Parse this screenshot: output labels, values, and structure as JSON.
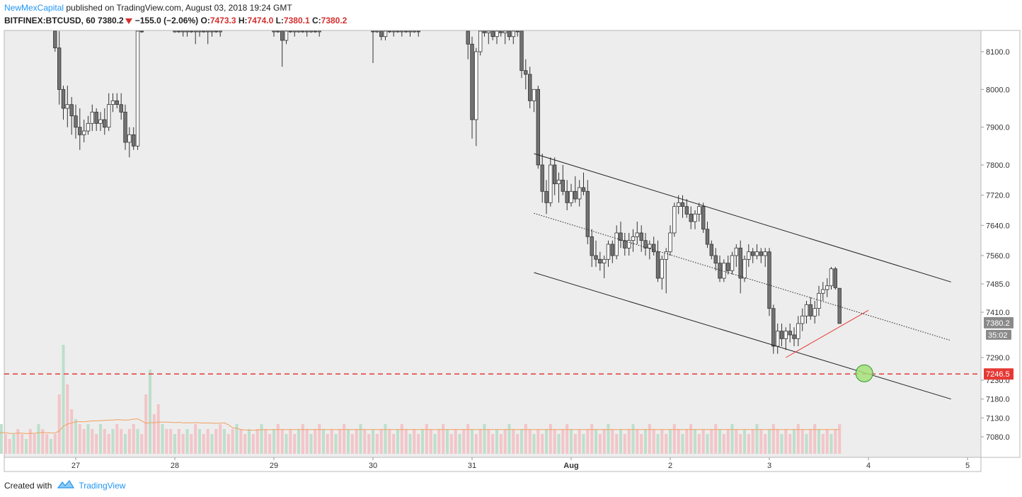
{
  "header": {
    "author": "NewMexCapital",
    "published_text": "published on TradingView.com, August 03, 2018 19:24 GMT",
    "symbol": "BITFINEX:BTCUSD, 60",
    "last": "7380.2",
    "change": "−155.0 (−2.06%)",
    "o_label": "O:",
    "o_value": "7473.3",
    "h_label": "H:",
    "h_value": "7474.0",
    "l_label": "L:",
    "l_value": "7380.1",
    "c_label": "C:",
    "c_value": "7380.2"
  },
  "footer": {
    "created_with": "Created with",
    "brand": "TradingView"
  },
  "colors": {
    "up": "#ffffff",
    "down": "#737373",
    "wick": "#333333",
    "vol_up": "#b7ddc8",
    "vol_down": "#f3c0c3",
    "vol_ma": "#f0a060",
    "channel": "#222222",
    "support": "#e53935",
    "target_fill": "#a5e07a",
    "bg": "#ededed"
  },
  "chart_data": {
    "type": "candlestick",
    "interval": "60",
    "x_ticks": [
      "27",
      "28",
      "29",
      "30",
      "31",
      "Aug",
      "2",
      "3",
      "4",
      "5"
    ],
    "y_ticks": [
      "7080.0",
      "7130.0",
      "7180.0",
      "7230.0",
      "7290.0",
      "7410.0",
      "7485.0",
      "7560.0",
      "7640.0",
      "7720.0",
      "7800.0",
      "7900.0",
      "8000.0",
      "8100.0"
    ],
    "ylim": [
      7040,
      8180
    ],
    "price_labels": {
      "last": "7380.2",
      "countdown": "35:02",
      "level": "7246.5"
    },
    "support_level": 7246.5,
    "overlays": {
      "channel_upper": [
        [
          "2018-07-31 15:00",
          7830
        ],
        [
          "2018-08-04 20:00",
          7490
        ]
      ],
      "channel_lower": [
        [
          "2018-07-31 15:00",
          7515
        ],
        [
          "2018-08-04 20:00",
          7180
        ]
      ],
      "channel_mid": [
        [
          "2018-07-31 15:00",
          7672
        ],
        [
          "2018-08-04 20:00",
          7335
        ]
      ],
      "support_line": [
        [
          "2018-08-03 04:00",
          7290
        ],
        [
          "2018-08-04 00:00",
          7415
        ]
      ],
      "target": [
        "2018-08-03 23:00",
        7248
      ]
    },
    "series_segments": [
      {
        "start": "2018-07-26 19:00",
        "ohlc": [
          [
            8160,
            8200,
            8100,
            8110
          ],
          [
            8110,
            8160,
            7960,
            8000
          ],
          [
            8000,
            8010,
            7920,
            7950
          ],
          [
            7950,
            8010,
            7900,
            7960
          ],
          [
            7960,
            7980,
            7880,
            7930
          ],
          [
            7930,
            7960,
            7870,
            7900
          ],
          [
            7900,
            7950,
            7840,
            7880
          ],
          [
            7880,
            7920,
            7860,
            7890
          ],
          [
            7890,
            7930,
            7880,
            7910
          ],
          [
            7910,
            7960,
            7890,
            7940
          ],
          [
            7940,
            7950,
            7890,
            7910
          ],
          [
            7910,
            7940,
            7890,
            7920
          ],
          [
            7920,
            7950,
            7880,
            7900
          ],
          [
            7900,
            7990,
            7890,
            7960
          ],
          [
            7960,
            7990,
            7940,
            7970
          ],
          [
            7970,
            7990,
            7950,
            7960
          ],
          [
            7960,
            7990,
            7920,
            7940
          ],
          [
            7940,
            7960,
            7840,
            7860
          ],
          [
            7860,
            7900,
            7820,
            7880
          ],
          [
            7880,
            7900,
            7840,
            7850
          ],
          [
            7850,
            8200,
            7840,
            8180
          ],
          [
            8180,
            8220,
            8150,
            8170
          ]
        ]
      },
      {
        "start": "2018-07-28 00:00",
        "ohlc": [
          [
            8170,
            8200,
            8150,
            8190
          ],
          [
            8190,
            8200,
            8150,
            8160
          ],
          [
            8160,
            8180,
            8140,
            8170
          ],
          [
            8170,
            8185,
            8140,
            8180
          ],
          [
            8180,
            8200,
            8150,
            8160
          ],
          [
            8160,
            8190,
            8120,
            8170
          ],
          [
            8170,
            8200,
            8140,
            8180
          ],
          [
            8180,
            8200,
            8150,
            8160
          ],
          [
            8160,
            8185,
            8120,
            8170
          ],
          [
            8170,
            8200,
            8140,
            8180
          ],
          [
            8180,
            8200,
            8150,
            8160
          ],
          [
            8160,
            8190,
            8140,
            8170
          ]
        ]
      },
      {
        "start": "2018-07-29 00:00",
        "ohlc": [
          [
            8170,
            8200,
            8140,
            8180
          ],
          [
            8180,
            8200,
            8150,
            8160
          ],
          [
            8160,
            8180,
            8060,
            8130
          ],
          [
            8130,
            8180,
            8120,
            8170
          ],
          [
            8170,
            8200,
            8150,
            8160
          ],
          [
            8160,
            8190,
            8140,
            8170
          ],
          [
            8170,
            8200,
            8150,
            8180
          ],
          [
            8180,
            8200,
            8150,
            8160
          ],
          [
            8160,
            8185,
            8140,
            8170
          ],
          [
            8170,
            8200,
            8150,
            8180
          ],
          [
            8180,
            8200,
            8150,
            8160
          ],
          [
            8160,
            8190,
            8140,
            8170
          ]
        ]
      },
      {
        "start": "2018-07-30 00:00",
        "ohlc": [
          [
            8170,
            8200,
            8070,
            8165
          ],
          [
            8165,
            8200,
            8150,
            8180
          ],
          [
            8180,
            8200,
            8130,
            8140
          ],
          [
            8140,
            8190,
            8130,
            8170
          ],
          [
            8170,
            8200,
            8150,
            8160
          ],
          [
            8160,
            8200,
            8140,
            8180
          ],
          [
            8180,
            8200,
            8150,
            8160
          ],
          [
            8160,
            8200,
            8140,
            8180
          ],
          [
            8180,
            8200,
            8150,
            8160
          ],
          [
            8160,
            8190,
            8140,
            8170
          ],
          [
            8170,
            8200,
            8150,
            8180
          ],
          [
            8180,
            8200,
            8140,
            8160
          ]
        ]
      },
      {
        "start": "2018-07-30 23:00",
        "ohlc": [
          [
            8160,
            8200,
            8080,
            8120
          ],
          [
            8120,
            8140,
            7870,
            7920
          ],
          [
            7920,
            8110,
            7850,
            8100
          ],
          [
            8100,
            8200,
            8090,
            8170
          ],
          [
            8170,
            8200,
            8140,
            8150
          ],
          [
            8150,
            8180,
            8120,
            8160
          ],
          [
            8160,
            8190,
            8130,
            8140
          ],
          [
            8140,
            8190,
            8120,
            8170
          ],
          [
            8170,
            8200,
            8140,
            8150
          ],
          [
            8150,
            8170,
            8120,
            8160
          ],
          [
            8160,
            8190,
            8130,
            8140
          ],
          [
            8140,
            8180,
            8120,
            8170
          ],
          [
            8170,
            8200,
            8140,
            8160
          ],
          [
            8160,
            8175,
            8030,
            8050
          ],
          [
            8050,
            8080,
            8000,
            8040
          ],
          [
            8040,
            8060,
            7950,
            7970
          ],
          [
            7970,
            8000,
            7940,
            8000
          ],
          [
            8000,
            8010,
            7790,
            7800
          ],
          [
            7800,
            7830,
            7700,
            7730
          ],
          [
            7730,
            7760,
            7670,
            7700
          ],
          [
            7700,
            7820,
            7690,
            7800
          ],
          [
            7800,
            7820,
            7720,
            7750
          ],
          [
            7750,
            7780,
            7700,
            7760
          ],
          [
            7760,
            7800,
            7720,
            7730
          ],
          [
            7730,
            7760,
            7680,
            7700
          ],
          [
            7700,
            7750,
            7690,
            7730
          ],
          [
            7730,
            7770,
            7700,
            7710
          ],
          [
            7710,
            7760,
            7690,
            7740
          ],
          [
            7740,
            7780,
            7720,
            7730
          ],
          [
            7730,
            7760,
            7590,
            7610
          ],
          [
            7610,
            7630,
            7530,
            7560
          ]
        ]
      },
      {
        "start": "2018-08-01 06:00",
        "ohlc": [
          [
            7560,
            7600,
            7530,
            7550
          ],
          [
            7550,
            7570,
            7520,
            7540
          ],
          [
            7540,
            7560,
            7500,
            7550
          ],
          [
            7550,
            7600,
            7530,
            7590
          ],
          [
            7590,
            7600,
            7540,
            7560
          ],
          [
            7560,
            7640,
            7550,
            7620
          ],
          [
            7620,
            7650,
            7580,
            7600
          ],
          [
            7600,
            7620,
            7560,
            7580
          ],
          [
            7580,
            7620,
            7560,
            7600
          ],
          [
            7600,
            7630,
            7570,
            7610
          ],
          [
            7610,
            7650,
            7590,
            7620
          ],
          [
            7620,
            7640,
            7570,
            7600
          ],
          [
            7600,
            7620,
            7560,
            7580
          ],
          [
            7580,
            7600,
            7550,
            7590
          ],
          [
            7590,
            7610,
            7560,
            7570
          ],
          [
            7570,
            7600,
            7490,
            7500
          ],
          [
            7500,
            7560,
            7470,
            7550
          ],
          [
            7550,
            7580,
            7460,
            7570
          ],
          [
            7570,
            7640,
            7560,
            7620
          ],
          [
            7620,
            7700,
            7610,
            7690
          ],
          [
            7690,
            7720,
            7670,
            7700
          ],
          [
            7700,
            7720,
            7660,
            7690
          ],
          [
            7690,
            7710,
            7660,
            7670
          ],
          [
            7670,
            7690,
            7630,
            7650
          ],
          [
            7650,
            7680,
            7630,
            7670
          ],
          [
            7670,
            7700,
            7650,
            7690
          ],
          [
            7690,
            7700,
            7620,
            7630
          ],
          [
            7630,
            7650,
            7580,
            7590
          ]
        ]
      },
      {
        "start": "2018-08-02 10:00",
        "ohlc": [
          [
            7590,
            7600,
            7550,
            7560
          ],
          [
            7560,
            7580,
            7520,
            7540
          ],
          [
            7540,
            7560,
            7490,
            7500
          ],
          [
            7500,
            7550,
            7490,
            7540
          ],
          [
            7540,
            7560,
            7510,
            7520
          ],
          [
            7520,
            7570,
            7510,
            7560
          ],
          [
            7560,
            7590,
            7530,
            7580
          ],
          [
            7580,
            7600,
            7460,
            7500
          ],
          [
            7500,
            7560,
            7490,
            7550
          ],
          [
            7550,
            7590,
            7530,
            7570
          ],
          [
            7570,
            7580,
            7540,
            7560
          ],
          [
            7560,
            7590,
            7550,
            7570
          ],
          [
            7570,
            7580,
            7540,
            7560
          ],
          [
            7560,
            7580,
            7530,
            7570
          ],
          [
            7570,
            7580,
            7400,
            7420
          ],
          [
            7420,
            7430,
            7300,
            7320
          ],
          [
            7320,
            7380,
            7300,
            7360
          ],
          [
            7360,
            7380,
            7320,
            7340
          ],
          [
            7340,
            7370,
            7310,
            7360
          ],
          [
            7360,
            7380,
            7330,
            7350
          ],
          [
            7350,
            7370,
            7320,
            7340
          ],
          [
            7340,
            7400,
            7320,
            7380
          ],
          [
            7380,
            7420,
            7360,
            7400
          ],
          [
            7400,
            7440,
            7380,
            7430
          ],
          [
            7430,
            7450,
            7390,
            7400
          ],
          [
            7400,
            7440,
            7380,
            7420
          ],
          [
            7420,
            7480,
            7400,
            7460
          ],
          [
            7460,
            7490,
            7440,
            7470
          ],
          [
            7470,
            7500,
            7450,
            7480
          ],
          [
            7480,
            7530,
            7470,
            7525
          ],
          [
            7525,
            7530,
            7470,
            7475
          ],
          [
            7473.3,
            7474.0,
            7380.1,
            7380.2
          ]
        ]
      }
    ],
    "volume_segments": [
      {
        "start": "2018-07-26 00:00",
        "values": [
          4,
          3,
          5,
          4,
          3,
          5,
          6,
          4,
          3,
          4,
          5,
          4,
          3,
          5,
          4,
          6,
          5,
          4,
          3,
          4,
          12,
          22,
          14,
          9,
          7,
          6,
          5,
          6,
          5,
          4,
          6,
          5,
          4,
          5,
          6,
          5,
          4,
          5,
          6,
          5,
          4,
          12,
          17,
          8,
          10,
          6,
          5,
          5,
          4,
          5,
          4,
          5,
          4,
          6,
          5,
          4,
          5,
          4,
          5,
          6,
          5,
          4,
          5,
          6,
          5,
          4,
          5,
          4,
          5,
          6,
          5,
          4,
          5,
          6,
          5,
          4,
          5,
          4,
          5,
          6,
          5,
          4,
          5,
          6,
          5,
          4,
          5,
          4,
          5,
          6,
          5,
          4,
          5,
          6,
          5,
          4,
          5,
          4,
          5,
          6,
          5,
          4,
          5,
          6,
          5,
          4,
          5,
          4,
          5,
          6,
          5,
          4,
          5,
          6,
          5,
          4,
          5,
          4,
          5,
          6,
          5,
          4,
          5,
          6,
          5,
          4,
          5,
          4,
          5,
          6,
          5,
          4,
          5,
          6,
          5,
          4,
          5,
          4,
          5,
          6,
          5,
          4,
          5,
          6,
          5,
          4,
          5,
          4,
          5,
          6,
          5,
          4,
          5,
          6,
          5,
          4,
          5,
          4,
          5,
          6,
          5,
          4,
          5,
          6,
          5,
          4,
          5,
          4,
          5,
          6,
          5,
          4,
          5,
          6,
          5,
          4,
          5,
          4,
          5,
          6,
          5,
          4,
          5,
          6,
          5,
          4,
          5,
          4,
          5,
          6,
          5,
          4,
          5,
          6,
          5,
          4,
          5,
          4,
          5,
          6,
          5,
          4,
          5,
          6,
          5,
          4,
          5,
          4,
          5,
          6
        ]
      }
    ]
  }
}
